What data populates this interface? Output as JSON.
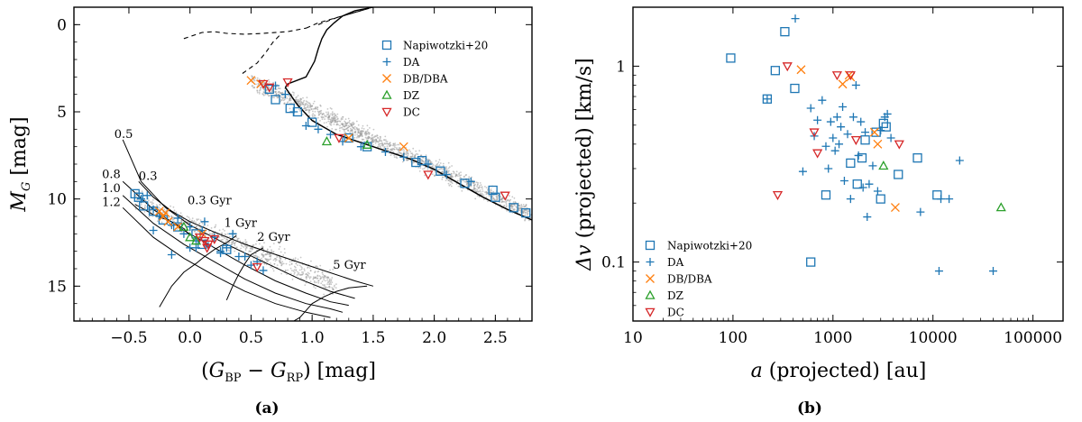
{
  "chart_data": [
    {
      "type": "scatter",
      "panel_label": "(a)",
      "xlabel": "(G_BP − G_RP) [mag]",
      "xlabel_parts": {
        "open": "(",
        "g1": "G",
        "sub1": "BP",
        "minus": " − ",
        "g2": "G",
        "sub2": "RP",
        "close": ") [mag]"
      },
      "ylabel": "M_G [mag]",
      "ylabel_parts": {
        "m": "M",
        "sub": "G",
        "unit": " [mag]"
      },
      "xlim": [
        -0.95,
        2.8
      ],
      "ylim": [
        17,
        -1
      ],
      "y_inverted": true,
      "xticks": [
        -0.5,
        0.0,
        0.5,
        1.0,
        1.5,
        2.0,
        2.5
      ],
      "xtick_labels": [
        "−0.5",
        "0.0",
        "0.5",
        "1.0",
        "1.5",
        "2.0",
        "2.5"
      ],
      "yticks": [
        0,
        5,
        10,
        15
      ],
      "ytick_labels": [
        "0",
        "5",
        "10",
        "15"
      ],
      "legend_position": "top-right",
      "legend": [
        {
          "label": "Napiwotzki+20",
          "marker": "square",
          "color": "#1f77b4"
        },
        {
          "label": "DA",
          "marker": "plus",
          "color": "#1f77b4"
        },
        {
          "label": "DB/DBA",
          "marker": "x",
          "color": "#ff7f0e"
        },
        {
          "label": "DZ",
          "marker": "triangle-up",
          "color": "#2ca02c"
        },
        {
          "label": "DC",
          "marker": "triangle-down",
          "color": "#d62728"
        }
      ],
      "annotations": [
        {
          "text": "0.5",
          "x": -0.62,
          "y": 6.5
        },
        {
          "text": "0.3",
          "x": -0.42,
          "y": 8.9
        },
        {
          "text": "0.8",
          "x": -0.72,
          "y": 8.8
        },
        {
          "text": "1.0",
          "x": -0.72,
          "y": 9.6
        },
        {
          "text": "1.2",
          "x": -0.72,
          "y": 10.4
        },
        {
          "text": "0.3 Gyr",
          "x": -0.02,
          "y": 10.3
        },
        {
          "text": "1 Gyr",
          "x": 0.28,
          "y": 11.6
        },
        {
          "text": "2 Gyr",
          "x": 0.55,
          "y": 12.4
        },
        {
          "text": "5 Gyr",
          "x": 1.17,
          "y": 14.0
        }
      ],
      "tracks": {
        "wd_cooling": [
          {
            "mass": "0.3",
            "x": [
              -0.42,
              -0.3,
              -0.15,
              0.0,
              0.2,
              0.45,
              0.75,
              1.05,
              1.35,
              1.5
            ],
            "y": [
              9.0,
              9.9,
              10.7,
              11.3,
              11.9,
              12.6,
              13.3,
              14.0,
              14.7,
              15.0
            ]
          },
          {
            "mass": "0.5",
            "x": [
              -0.55,
              -0.4,
              -0.2,
              0.0,
              0.3,
              0.6,
              0.9,
              1.15,
              1.35
            ],
            "y": [
              6.6,
              9.0,
              10.5,
              11.5,
              12.6,
              13.6,
              14.6,
              15.3,
              15.7
            ]
          },
          {
            "mass": "0.8",
            "x": [
              -0.55,
              -0.3,
              -0.05,
              0.2,
              0.45,
              0.7,
              0.95,
              1.15,
              1.3
            ],
            "y": [
              9.0,
              10.6,
              11.8,
              12.8,
              13.8,
              14.7,
              15.4,
              15.9,
              16.1
            ]
          },
          {
            "mass": "1.0",
            "x": [
              -0.55,
              -0.3,
              -0.05,
              0.2,
              0.45,
              0.7,
              0.95,
              1.15,
              1.25
            ],
            "y": [
              9.8,
              11.4,
              12.6,
              13.6,
              14.6,
              15.4,
              16.0,
              16.3,
              16.5
            ]
          },
          {
            "mass": "1.2",
            "x": [
              -0.55,
              -0.3,
              -0.05,
              0.2,
              0.45,
              0.7,
              0.95,
              1.15
            ],
            "y": [
              10.5,
              12.2,
              13.4,
              14.4,
              15.3,
              16.0,
              16.5,
              16.8
            ]
          }
        ],
        "isochrones": [
          {
            "age": "0.3 Gyr",
            "x": [
              -0.45,
              -0.3,
              -0.15,
              -0.05,
              0.0
            ],
            "y": [
              10.3,
              10.9,
              11.3,
              11.7,
              12.1
            ]
          },
          {
            "age": "1 Gyr",
            "x": [
              0.38,
              0.3,
              0.2,
              0.12,
              0.05,
              -0.05,
              -0.15,
              -0.25
            ],
            "y": [
              12.1,
              12.5,
              12.9,
              13.3,
              13.7,
              14.2,
              15.0,
              16.2
            ]
          },
          {
            "age": "2 Gyr",
            "x": [
              0.6,
              0.5,
              0.45,
              0.4,
              0.35,
              0.3
            ],
            "y": [
              12.8,
              13.2,
              13.7,
              14.3,
              15.0,
              15.8
            ]
          },
          {
            "age": "5 Gyr",
            "x": [
              1.45,
              1.3,
              1.2,
              1.1,
              1.0,
              0.95,
              0.9,
              0.85
            ],
            "y": [
              15.0,
              15.1,
              15.3,
              15.6,
              16.0,
              16.4,
              16.8,
              17.0
            ]
          }
        ],
        "main_sequence": {
          "x": [
            0.78,
            0.88,
            1.0,
            1.2,
            1.5,
            1.8,
            2.0,
            2.2,
            2.4,
            2.6,
            2.8
          ],
          "y": [
            3.6,
            4.6,
            5.5,
            6.3,
            7.0,
            7.7,
            8.3,
            9.1,
            9.9,
            10.6,
            11.2
          ]
        },
        "giant_branch": {
          "x": [
            0.78,
            0.8,
            0.95,
            1.02,
            1.05,
            1.08,
            1.12,
            1.18,
            1.25,
            1.35,
            1.5
          ],
          "y": [
            3.6,
            3.4,
            3.0,
            2.1,
            1.4,
            0.8,
            0.3,
            -0.1,
            -0.5,
            -0.8,
            -1.0
          ]
        },
        "branch_dashed": [
          {
            "x": [
              0.43,
              0.55,
              0.62,
              0.68,
              0.75
            ],
            "y": [
              2.8,
              2.2,
              1.6,
              1.0,
              0.5
            ]
          },
          {
            "x": [
              -0.05,
              0.1,
              0.2,
              0.3,
              0.45,
              0.6,
              0.8,
              0.95
            ],
            "y": [
              0.8,
              0.45,
              0.4,
              0.5,
              0.55,
              0.5,
              0.4,
              0.2
            ]
          },
          {
            "x": [
              0.95,
              1.05,
              1.15,
              1.3,
              1.45
            ],
            "y": [
              0.2,
              -0.1,
              -0.3,
              -0.6,
              -0.9
            ]
          },
          {
            "x": [
              1.05,
              1.2,
              1.35,
              1.5
            ],
            "y": [
              0.0,
              -0.4,
              -0.7,
              -1.0
            ]
          }
        ]
      },
      "background_cloud": [
        {
          "x_range": [
            0.5,
            2.8
          ],
          "y_center": [
            3.2,
            10.9
          ],
          "scatter": 0.45,
          "count": 1400
        },
        {
          "x_range": [
            -0.45,
            1.2
          ],
          "y_center": [
            10.2,
            14.9
          ],
          "scatter": 0.6,
          "count": 700
        }
      ],
      "series": [
        {
          "name": "Napiwotzki+20",
          "marker": "square",
          "color": "#1f77b4",
          "x": [
            -0.45,
            -0.42,
            -0.38,
            -0.3,
            -0.22,
            -0.1,
            0.05,
            0.1,
            0.3,
            0.65,
            0.7,
            0.82,
            0.88,
            1.0,
            1.3,
            1.45,
            1.85,
            1.9,
            2.05,
            2.25,
            2.48,
            2.5,
            2.65,
            2.75
          ],
          "y": [
            9.7,
            9.9,
            10.4,
            10.7,
            11.2,
            11.6,
            12.0,
            12.6,
            12.9,
            3.7,
            4.3,
            4.8,
            5.0,
            5.6,
            6.5,
            7.0,
            7.9,
            7.8,
            8.4,
            9.1,
            9.5,
            9.9,
            10.5,
            10.8
          ]
        },
        {
          "name": "DA",
          "marker": "plus",
          "color": "#1f77b4",
          "x": [
            -0.4,
            -0.35,
            -0.3,
            -0.25,
            -0.15,
            -0.1,
            -0.05,
            0.0,
            0.05,
            0.1,
            0.15,
            0.2,
            0.25,
            0.3,
            0.4,
            0.5,
            0.6,
            0.7,
            0.78,
            0.85,
            0.95,
            1.05,
            1.15,
            1.25,
            1.4,
            1.6,
            1.75,
            1.95,
            2.1,
            2.3,
            -0.15,
            0.05,
            0.35,
            0.55,
            -0.3,
            0.25,
            0.12,
            0.0,
            0.45
          ],
          "y": [
            10.0,
            9.8,
            10.6,
            11.0,
            11.5,
            11.1,
            12.0,
            11.6,
            12.4,
            11.8,
            12.7,
            12.2,
            13.1,
            12.8,
            13.3,
            13.8,
            14.1,
            3.5,
            4.0,
            5.0,
            5.8,
            6.0,
            6.3,
            6.7,
            7.0,
            7.3,
            7.6,
            8.0,
            8.6,
            9.0,
            13.2,
            12.8,
            12.0,
            13.6,
            11.8,
            13.0,
            11.3,
            12.8,
            13.3
          ]
        },
        {
          "name": "DB/DBA",
          "marker": "x",
          "color": "#ff7f0e",
          "x": [
            -0.25,
            -0.22,
            -0.2,
            -0.18,
            -0.1,
            0.5,
            0.58,
            1.75,
            1.3,
            0.1
          ],
          "y": [
            10.7,
            11.0,
            10.8,
            11.3,
            11.6,
            3.2,
            3.4,
            7.0,
            6.5,
            12.0
          ]
        },
        {
          "name": "DZ",
          "marker": "triangle-up",
          "color": "#2ca02c",
          "x": [
            -0.05,
            0.0,
            0.05,
            1.12,
            1.45
          ],
          "y": [
            11.6,
            12.2,
            12.4,
            6.7,
            6.9
          ]
        },
        {
          "name": "DC",
          "marker": "triangle-down",
          "color": "#d62728",
          "x": [
            0.08,
            0.12,
            0.14,
            0.15,
            0.2,
            0.55,
            0.65,
            0.8,
            1.22,
            1.95,
            2.58,
            0.6
          ],
          "y": [
            12.2,
            12.4,
            12.8,
            12.6,
            12.3,
            13.9,
            3.6,
            3.3,
            6.5,
            8.6,
            9.8,
            3.4
          ]
        }
      ]
    },
    {
      "type": "scatter",
      "panel_label": "(b)",
      "xlabel": "a (projected) [au]",
      "xlabel_parts": {
        "var": "a",
        "rest": " (projected) [au]"
      },
      "ylabel": "Δv (projected) [km/s]",
      "ylabel_parts": {
        "var": "Δv",
        "rest": " (projected) [km/s]"
      },
      "xscale": "log",
      "yscale": "log",
      "xlim": [
        10,
        200000
      ],
      "ylim": [
        0.05,
        2
      ],
      "xticks": [
        10,
        100,
        1000,
        10000,
        100000
      ],
      "xtick_labels": [
        "10",
        "100",
        "1000",
        "10000",
        "100000"
      ],
      "yticks": [
        0.1,
        1
      ],
      "ytick_labels": [
        "0.1",
        "1"
      ],
      "legend_position": "bottom-left",
      "legend": [
        {
          "label": "Napiwotzki+20",
          "marker": "square",
          "color": "#1f77b4"
        },
        {
          "label": "DA",
          "marker": "plus",
          "color": "#1f77b4"
        },
        {
          "label": "DB/DBA",
          "marker": "x",
          "color": "#ff7f0e"
        },
        {
          "label": "DZ",
          "marker": "triangle-up",
          "color": "#2ca02c"
        },
        {
          "label": "DC",
          "marker": "triangle-down",
          "color": "#d62728"
        }
      ],
      "series": [
        {
          "name": "Napiwotzki+20",
          "marker": "square",
          "color": "#1f77b4",
          "x": [
            95,
            220,
            265,
            330,
            415,
            600,
            850,
            1500,
            1750,
            1950,
            2100,
            2700,
            3000,
            3200,
            3400,
            4500,
            7000,
            11000
          ],
          "y": [
            1.1,
            0.68,
            0.95,
            1.5,
            0.77,
            0.1,
            0.22,
            0.32,
            0.25,
            0.34,
            0.42,
            0.46,
            0.21,
            0.51,
            0.49,
            0.28,
            0.34,
            0.22
          ]
        },
        {
          "name": "DA",
          "marker": "plus",
          "color": "#1f77b4",
          "x": [
            220,
            420,
            500,
            600,
            650,
            700,
            780,
            850,
            900,
            950,
            1000,
            1050,
            1100,
            1150,
            1200,
            1250,
            1300,
            1400,
            1500,
            1600,
            1700,
            1800,
            1900,
            2000,
            2100,
            2200,
            2300,
            2500,
            2800,
            3000,
            3300,
            3500,
            3800,
            7500,
            11500,
            14500,
            18500,
            40000,
            12000
          ],
          "y": [
            0.68,
            1.75,
            0.29,
            0.61,
            0.44,
            0.53,
            0.67,
            0.39,
            0.3,
            0.52,
            0.43,
            0.37,
            0.55,
            0.4,
            0.49,
            0.62,
            0.26,
            0.45,
            0.21,
            0.55,
            0.8,
            0.35,
            0.52,
            0.24,
            0.46,
            0.17,
            0.25,
            0.31,
            0.23,
            0.47,
            0.55,
            0.57,
            0.43,
            0.18,
            0.09,
            0.21,
            0.33,
            0.09,
            0.21
          ]
        },
        {
          "name": "DB/DBA",
          "marker": "x",
          "color": "#ff7f0e",
          "x": [
            480,
            1250,
            1450,
            1500,
            2600,
            2800,
            4200
          ],
          "y": [
            0.96,
            0.81,
            0.9,
            0.88,
            0.46,
            0.4,
            0.19
          ]
        },
        {
          "name": "DZ",
          "marker": "triangle-up",
          "color": "#2ca02c",
          "x": [
            3200,
            48000
          ],
          "y": [
            0.31,
            0.19
          ]
        },
        {
          "name": "DC",
          "marker": "triangle-down",
          "color": "#d62728",
          "x": [
            280,
            350,
            650,
            700,
            1100,
            1500,
            1700,
            4600
          ],
          "y": [
            0.22,
            1.0,
            0.46,
            0.36,
            0.9,
            0.9,
            0.42,
            0.4
          ]
        }
      ]
    }
  ]
}
